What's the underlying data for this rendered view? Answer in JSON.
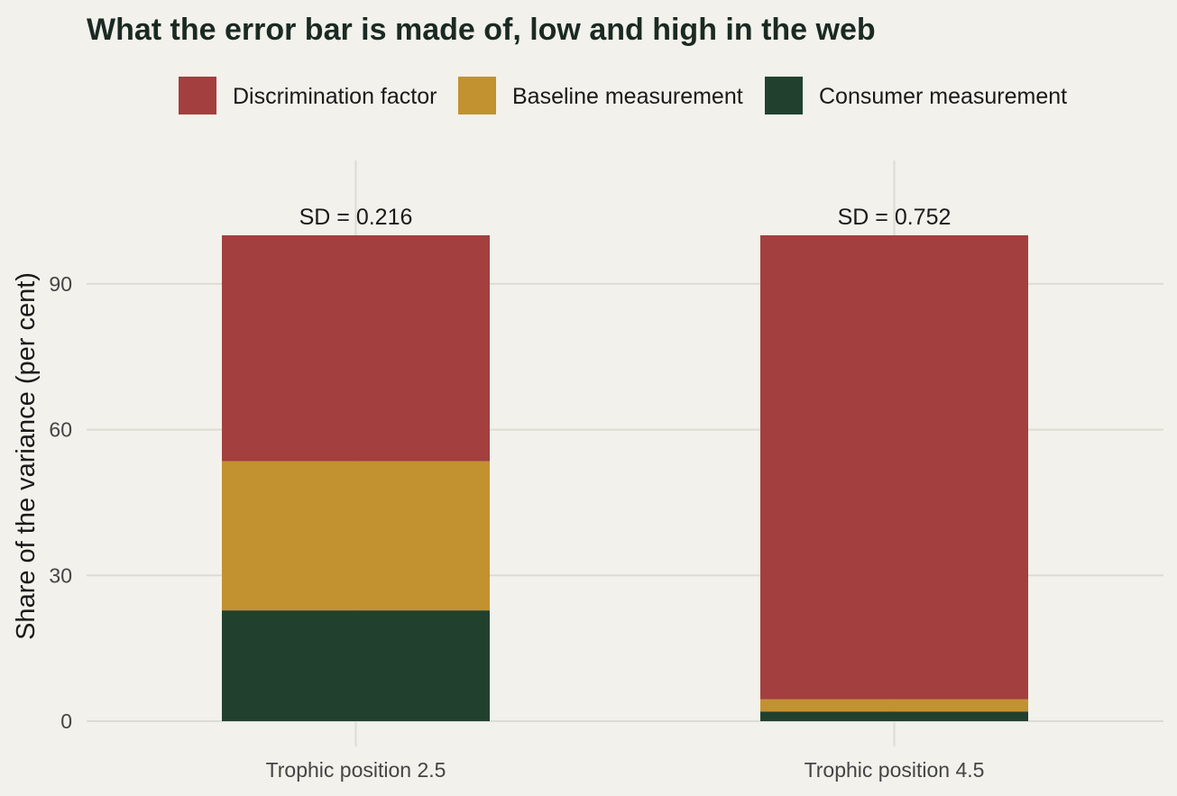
{
  "chart_data": {
    "type": "bar",
    "stacked": true,
    "title": "What the error bar is made of, low and high in the web",
    "ylabel": "Share of the variance (per cent)",
    "xlabel": "",
    "ylim": [
      0,
      100
    ],
    "yticks": [
      0,
      30,
      60,
      90
    ],
    "grid": true,
    "legend_position": "top",
    "categories": [
      "Trophic position 2.5",
      "Trophic position 4.5"
    ],
    "annotations": [
      "SD = 0.216",
      "SD = 0.752"
    ],
    "series": [
      {
        "name": "Consumer measurement",
        "color": "#21412e",
        "values": [
          22.8,
          2.0
        ]
      },
      {
        "name": "Baseline measurement",
        "color": "#c29231",
        "values": [
          30.7,
          2.5
        ]
      },
      {
        "name": "Discrimination factor",
        "color": "#a33f3f",
        "values": [
          46.5,
          95.5
        ]
      }
    ],
    "legend_order": [
      "Discrimination factor",
      "Baseline measurement",
      "Consumer measurement"
    ]
  }
}
